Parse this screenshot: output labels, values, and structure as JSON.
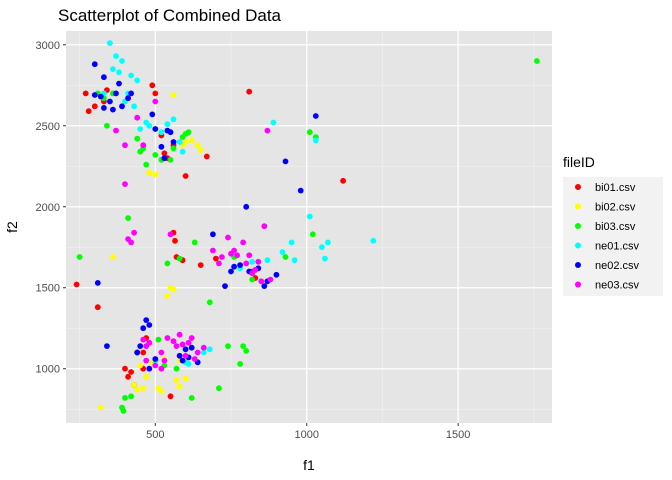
{
  "chart_data": {
    "type": "scatter",
    "title": "Scatterplot of Combined Data",
    "xlabel": "f1",
    "ylabel": "f2",
    "xlim": [
      205,
      1810
    ],
    "ylim": [
      665,
      3085
    ],
    "x_ticks": [
      500,
      1000,
      1500
    ],
    "y_ticks": [
      1000,
      1500,
      2000,
      2500,
      3000
    ],
    "x_tick_labels": [
      "500",
      "1000",
      "1500"
    ],
    "y_tick_labels": [
      "1000",
      "1500",
      "2000",
      "2500",
      "3000"
    ],
    "legend": {
      "title": "fileID",
      "position": "right"
    },
    "panel_background": "#e5e5e5",
    "grid": true,
    "series": [
      {
        "name": "bi01.csv",
        "color": "#ff0000",
        "points": [
          [
            240,
            1520
          ],
          [
            280,
            2590
          ],
          [
            300,
            2620
          ],
          [
            310,
            1380
          ],
          [
            330,
            2650
          ],
          [
            400,
            1000
          ],
          [
            420,
            980
          ],
          [
            410,
            950
          ],
          [
            430,
            900
          ],
          [
            460,
            1100
          ],
          [
            470,
            1190
          ],
          [
            490,
            2750
          ],
          [
            500,
            2700
          ],
          [
            520,
            2440
          ],
          [
            530,
            2330
          ],
          [
            540,
            2300
          ],
          [
            550,
            830
          ],
          [
            560,
            1840
          ],
          [
            565,
            1790
          ],
          [
            570,
            1690
          ],
          [
            590,
            1670
          ],
          [
            600,
            2190
          ],
          [
            650,
            1640
          ],
          [
            670,
            2310
          ],
          [
            700,
            1680
          ],
          [
            810,
            2710
          ],
          [
            820,
            1600
          ],
          [
            830,
            1560
          ],
          [
            1120,
            2160
          ],
          [
            460,
            1000
          ],
          [
            500,
            1050
          ],
          [
            560,
            2380
          ],
          [
            270,
            2700
          ],
          [
            340,
            2720
          ]
        ]
      },
      {
        "name": "bi02.csv",
        "color": "#ffff00",
        "points": [
          [
            320,
            760
          ],
          [
            360,
            1690
          ],
          [
            430,
            900
          ],
          [
            440,
            870
          ],
          [
            450,
            1020
          ],
          [
            460,
            880
          ],
          [
            470,
            950
          ],
          [
            480,
            2210
          ],
          [
            490,
            1040
          ],
          [
            500,
            2200
          ],
          [
            510,
            880
          ],
          [
            520,
            860
          ],
          [
            530,
            1060
          ],
          [
            540,
            1450
          ],
          [
            550,
            1500
          ],
          [
            560,
            2690
          ],
          [
            570,
            930
          ],
          [
            580,
            890
          ],
          [
            590,
            2380
          ],
          [
            600,
            2400
          ],
          [
            620,
            2410
          ],
          [
            640,
            2380
          ],
          [
            650,
            2350
          ],
          [
            560,
            1490
          ],
          [
            580,
            1050
          ],
          [
            600,
            940
          ]
        ]
      },
      {
        "name": "bi03.csv",
        "color": "#00ff00",
        "points": [
          [
            250,
            1690
          ],
          [
            310,
            2700
          ],
          [
            330,
            2670
          ],
          [
            340,
            2500
          ],
          [
            360,
            2700
          ],
          [
            390,
            760
          ],
          [
            395,
            740
          ],
          [
            400,
            820
          ],
          [
            410,
            1930
          ],
          [
            420,
            830
          ],
          [
            440,
            2420
          ],
          [
            450,
            2340
          ],
          [
            460,
            2360
          ],
          [
            470,
            2260
          ],
          [
            500,
            2320
          ],
          [
            510,
            1180
          ],
          [
            520,
            2290
          ],
          [
            530,
            1020
          ],
          [
            540,
            1650
          ],
          [
            550,
            2290
          ],
          [
            560,
            2360
          ],
          [
            570,
            1000
          ],
          [
            590,
            2430
          ],
          [
            600,
            2450
          ],
          [
            610,
            2460
          ],
          [
            620,
            820
          ],
          [
            630,
            1780
          ],
          [
            680,
            1410
          ],
          [
            710,
            880
          ],
          [
            740,
            1140
          ],
          [
            760,
            1690
          ],
          [
            780,
            1030
          ],
          [
            790,
            1140
          ],
          [
            800,
            1110
          ],
          [
            820,
            1550
          ],
          [
            830,
            1610
          ],
          [
            930,
            1690
          ],
          [
            1010,
            2460
          ],
          [
            1020,
            1830
          ],
          [
            1030,
            2430
          ],
          [
            1760,
            2900
          ],
          [
            580,
            1680
          ]
        ]
      },
      {
        "name": "ne01.csv",
        "color": "#00ffff",
        "points": [
          [
            350,
            3010
          ],
          [
            360,
            2850
          ],
          [
            370,
            2930
          ],
          [
            380,
            2830
          ],
          [
            390,
            2900
          ],
          [
            400,
            2650
          ],
          [
            410,
            2700
          ],
          [
            420,
            2810
          ],
          [
            430,
            2620
          ],
          [
            440,
            2780
          ],
          [
            450,
            2480
          ],
          [
            470,
            2520
          ],
          [
            480,
            2500
          ],
          [
            500,
            1050
          ],
          [
            520,
            2460
          ],
          [
            540,
            2510
          ],
          [
            560,
            2540
          ],
          [
            580,
            2400
          ],
          [
            590,
            2340
          ],
          [
            600,
            1040
          ],
          [
            610,
            1030
          ],
          [
            660,
            1100
          ],
          [
            680,
            1120
          ],
          [
            780,
            1620
          ],
          [
            820,
            1660
          ],
          [
            870,
            1670
          ],
          [
            890,
            2520
          ],
          [
            920,
            1720
          ],
          [
            950,
            1780
          ],
          [
            960,
            1670
          ],
          [
            1010,
            1940
          ],
          [
            1030,
            2410
          ],
          [
            1050,
            1750
          ],
          [
            1060,
            1680
          ],
          [
            1070,
            1780
          ],
          [
            1220,
            1790
          ],
          [
            330,
            2700
          ]
        ]
      },
      {
        "name": "ne02.csv",
        "color": "#0000ff",
        "points": [
          [
            300,
            2690
          ],
          [
            310,
            1530
          ],
          [
            320,
            2680
          ],
          [
            330,
            2610
          ],
          [
            340,
            1140
          ],
          [
            350,
            2650
          ],
          [
            360,
            2600
          ],
          [
            370,
            2700
          ],
          [
            380,
            2760
          ],
          [
            390,
            2620
          ],
          [
            410,
            2670
          ],
          [
            420,
            2700
          ],
          [
            440,
            1100
          ],
          [
            450,
            1140
          ],
          [
            460,
            1250
          ],
          [
            470,
            1300
          ],
          [
            480,
            1270
          ],
          [
            490,
            2570
          ],
          [
            500,
            2480
          ],
          [
            520,
            2370
          ],
          [
            530,
            2300
          ],
          [
            540,
            2470
          ],
          [
            550,
            2460
          ],
          [
            560,
            2400
          ],
          [
            580,
            1080
          ],
          [
            590,
            1050
          ],
          [
            600,
            1120
          ],
          [
            610,
            1070
          ],
          [
            620,
            1130
          ],
          [
            640,
            1040
          ],
          [
            690,
            1830
          ],
          [
            730,
            1510
          ],
          [
            750,
            1600
          ],
          [
            760,
            1630
          ],
          [
            780,
            1640
          ],
          [
            800,
            2000
          ],
          [
            810,
            1600
          ],
          [
            840,
            1620
          ],
          [
            860,
            1510
          ],
          [
            870,
            1540
          ],
          [
            900,
            1580
          ],
          [
            930,
            2280
          ],
          [
            980,
            2100
          ],
          [
            1030,
            2560
          ],
          [
            440,
            1100
          ],
          [
            480,
            1000
          ],
          [
            500,
            1060
          ],
          [
            300,
            2880
          ],
          [
            330,
            2800
          ]
        ]
      },
      {
        "name": "ne03.csv",
        "color": "#ff00ff",
        "points": [
          [
            370,
            2470
          ],
          [
            400,
            2140
          ],
          [
            410,
            1800
          ],
          [
            420,
            1780
          ],
          [
            430,
            1840
          ],
          [
            440,
            2550
          ],
          [
            460,
            1180
          ],
          [
            470,
            1140
          ],
          [
            480,
            1160
          ],
          [
            500,
            2650
          ],
          [
            520,
            1000
          ],
          [
            530,
            1050
          ],
          [
            540,
            1190
          ],
          [
            550,
            1830
          ],
          [
            560,
            1170
          ],
          [
            570,
            1140
          ],
          [
            580,
            1210
          ],
          [
            590,
            1150
          ],
          [
            600,
            1080
          ],
          [
            610,
            1160
          ],
          [
            620,
            1190
          ],
          [
            630,
            1060
          ],
          [
            640,
            1100
          ],
          [
            660,
            1130
          ],
          [
            690,
            1730
          ],
          [
            710,
            1650
          ],
          [
            720,
            1690
          ],
          [
            740,
            1810
          ],
          [
            750,
            1710
          ],
          [
            760,
            1730
          ],
          [
            770,
            1700
          ],
          [
            790,
            1780
          ],
          [
            800,
            1650
          ],
          [
            810,
            1700
          ],
          [
            820,
            1590
          ],
          [
            830,
            1610
          ],
          [
            840,
            1660
          ],
          [
            850,
            1540
          ],
          [
            860,
            1880
          ],
          [
            870,
            2470
          ],
          [
            880,
            1550
          ],
          [
            500,
            1020
          ],
          [
            470,
            1050
          ],
          [
            520,
            1100
          ],
          [
            460,
            2380
          ],
          [
            400,
            2380
          ]
        ]
      }
    ]
  }
}
